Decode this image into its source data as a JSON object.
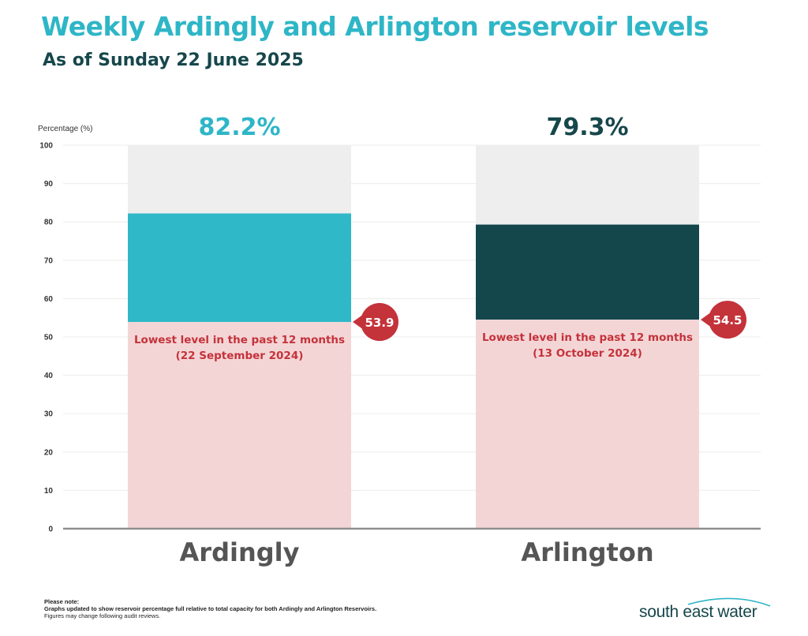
{
  "title": "Weekly Ardingly and Arlington reservoir levels",
  "subtitle": "As of Sunday 22 June 2025",
  "chart_data": {
    "type": "bar",
    "ylabel": "Percentage (%)",
    "ylim": [
      0,
      100
    ],
    "yticks": [
      0,
      10,
      20,
      30,
      40,
      50,
      60,
      70,
      80,
      90,
      100
    ],
    "grid": true,
    "categories": [
      "Ardingly",
      "Arlington"
    ],
    "values": [
      82.2,
      79.3
    ],
    "value_labels": [
      "82.2%",
      "79.3%"
    ],
    "lowest_values": [
      53.9,
      54.5
    ],
    "lowest_value_labels": [
      "53.9",
      "54.5"
    ],
    "lowest_notes": [
      [
        "Lowest level in the past 12 months",
        "(22 September 2024)"
      ],
      [
        "Lowest level in the past 12 months",
        "(13 October 2024)"
      ]
    ],
    "colors": {
      "ardingly": "#2eb8c8",
      "arlington": "#14474c",
      "capacity": "#eeeeee",
      "lowest_fill": "#f4d5d6",
      "lowest_accent": "#c4323a",
      "ardingly_label": "#2eb6c7",
      "arlington_label": "#16474b",
      "category_label": "#555555"
    }
  },
  "notes": {
    "heading": "Please note:",
    "line1": "Graphs updated to show reservoir percentage full relative to total capacity for both Ardingly and Arlington Reservoirs.",
    "line2": "Figures may change following audit reviews."
  },
  "logo": {
    "text": "south east water",
    "swoosh_color": "#2eb6c7"
  }
}
